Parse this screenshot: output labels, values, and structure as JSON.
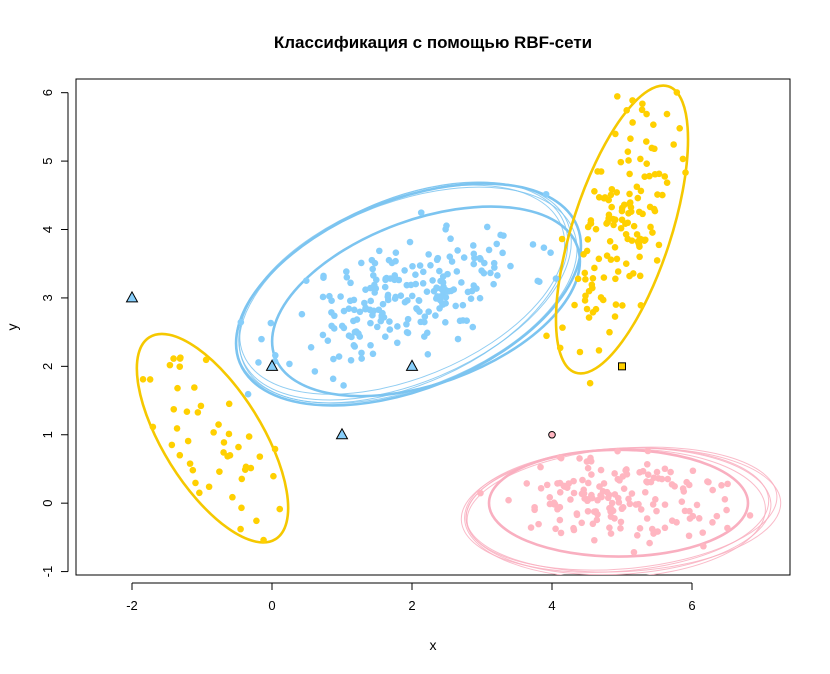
{
  "chart_data": {
    "type": "scatter",
    "title": "Классификация с помощью RBF-сети",
    "xlabel": "x",
    "ylabel": "y",
    "xlim": [
      -2.8,
      7.4
    ],
    "ylim": [
      -1.05,
      6.2
    ],
    "x_ticks": [
      -2,
      0,
      2,
      4,
      6
    ],
    "y_ticks": [
      -1,
      0,
      1,
      2,
      3,
      4,
      5,
      6
    ],
    "x_tick_labels": [
      "-2",
      "0",
      "2",
      "4",
      "6"
    ],
    "y_tick_labels": [
      "-1",
      "0",
      "1",
      "2",
      "3",
      "4",
      "5",
      "6"
    ],
    "grid": false,
    "legend": "none",
    "colors": {
      "gold": "#FFD000",
      "lightblue": "#87CEFA",
      "pink": "#FFB6C1",
      "gold_stroke": "#F5C800",
      "lightblue_stroke": "#7CC4F0",
      "pink_stroke": "#F9AFC0"
    },
    "clusters": [
      {
        "color": "lightblue",
        "center": [
          1.95,
          3.05
        ],
        "spread": [
          0.85,
          0.5
        ],
        "n": 220,
        "rho": 0.55,
        "seed": 11,
        "ellipses": [
          {
            "cx": 1.95,
            "cy": 3.05,
            "a": 2.6,
            "b": 1.38,
            "angle": 22,
            "weight": "bold"
          },
          {
            "cx": 2.2,
            "cy": 2.95,
            "a": 2.3,
            "b": 1.2,
            "angle": 20,
            "weight": "bold"
          },
          {
            "cx": 1.9,
            "cy": 3.1,
            "a": 2.52,
            "b": 1.34,
            "angle": 23,
            "weight": "thin"
          },
          {
            "cx": 1.88,
            "cy": 3.08,
            "a": 2.5,
            "b": 1.35,
            "angle": 24,
            "weight": "thin"
          },
          {
            "cx": 1.92,
            "cy": 3.04,
            "a": 2.56,
            "b": 1.36,
            "angle": 21,
            "weight": "thin"
          },
          {
            "cx": 1.86,
            "cy": 3.12,
            "a": 2.45,
            "b": 1.3,
            "angle": 22,
            "weight": "thin"
          }
        ]
      },
      {
        "color": "gold",
        "center": [
          4.95,
          3.95
        ],
        "spread": [
          0.38,
          0.82
        ],
        "n": 140,
        "rho": 0.6,
        "seed": 23,
        "ellipses": [
          {
            "cx": 5.0,
            "cy": 4.0,
            "a": 2.15,
            "b": 0.72,
            "angle": 72,
            "weight": "bold"
          }
        ]
      },
      {
        "color": "gold",
        "center": [
          -0.85,
          0.85
        ],
        "spread": [
          0.42,
          0.58
        ],
        "n": 48,
        "rho": -0.55,
        "seed": 37,
        "ellipses": [
          {
            "cx": -0.85,
            "cy": 0.95,
            "a": 1.7,
            "b": 0.72,
            "angle": -58,
            "weight": "bold"
          }
        ]
      },
      {
        "color": "pink",
        "center": [
          4.95,
          0.05
        ],
        "spread": [
          0.78,
          0.33
        ],
        "n": 160,
        "rho": 0.0,
        "seed": 51,
        "ellipses": [
          {
            "cx": 4.95,
            "cy": 0.0,
            "a": 1.85,
            "b": 0.78,
            "angle": 0,
            "weight": "bold"
          },
          {
            "cx": 4.9,
            "cy": -0.1,
            "a": 2.2,
            "b": 0.9,
            "angle": 4,
            "weight": "thin"
          },
          {
            "cx": 4.95,
            "cy": -0.12,
            "a": 2.18,
            "b": 0.92,
            "angle": 3,
            "weight": "thin"
          },
          {
            "cx": 5.0,
            "cy": -0.08,
            "a": 2.22,
            "b": 0.88,
            "angle": 5,
            "weight": "thin"
          },
          {
            "cx": 4.9,
            "cy": -0.15,
            "a": 2.15,
            "b": 0.94,
            "angle": 2,
            "weight": "thin"
          },
          {
            "cx": 5.02,
            "cy": -0.1,
            "a": 2.25,
            "b": 0.9,
            "angle": 3,
            "weight": "thin"
          }
        ]
      }
    ],
    "special_points": [
      {
        "x": -2,
        "y": 3,
        "shape": "triangle",
        "color": "lightblue"
      },
      {
        "x": 0,
        "y": 2,
        "shape": "triangle",
        "color": "lightblue"
      },
      {
        "x": 2,
        "y": 2,
        "shape": "triangle",
        "color": "lightblue"
      },
      {
        "x": 1,
        "y": 1,
        "shape": "triangle",
        "color": "lightblue"
      },
      {
        "x": 5,
        "y": 2,
        "shape": "square",
        "color": "gold"
      },
      {
        "x": 4,
        "y": 1,
        "shape": "circle",
        "color": "pink"
      }
    ]
  }
}
